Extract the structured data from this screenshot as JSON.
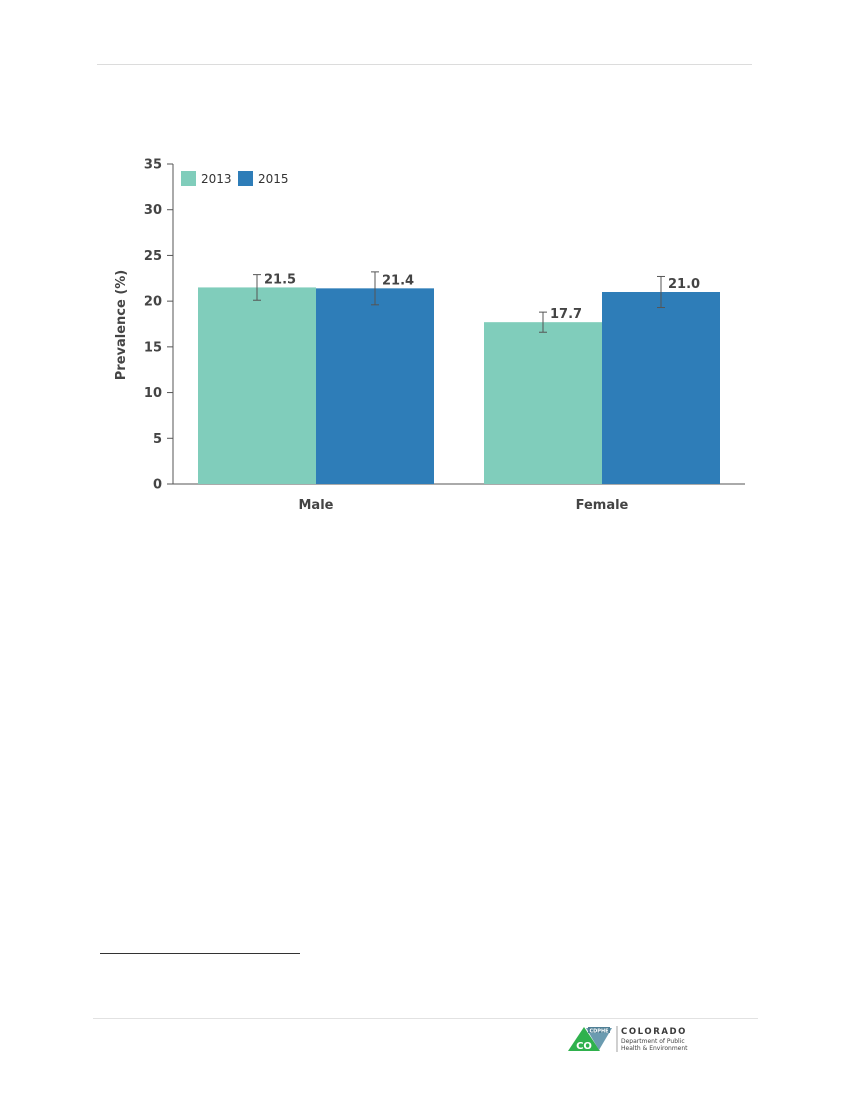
{
  "chart_data": {
    "type": "bar",
    "categories": [
      "Male",
      "Female"
    ],
    "series": [
      {
        "name": "2013",
        "color": "#80cdbb",
        "values": [
          21.5,
          17.7
        ],
        "error_low": [
          20.1,
          16.6
        ],
        "error_high": [
          22.9,
          18.8
        ]
      },
      {
        "name": "2015",
        "color": "#2e7db8",
        "values": [
          21.4,
          21.0
        ],
        "error_low": [
          19.6,
          19.3
        ],
        "error_high": [
          23.2,
          22.7
        ]
      }
    ],
    "data_labels": [
      "21.5",
      "21.4",
      "17.7",
      "21.0"
    ],
    "ylabel": "Prevalence (%)",
    "xlabel": "",
    "ylim": [
      0,
      35
    ],
    "yticks": [
      0,
      5,
      10,
      15,
      20,
      25,
      30,
      35
    ],
    "grid": false,
    "legend_position": "top-left"
  },
  "footer": {
    "logo_badge": "CDPHE",
    "logo_mark": "CO",
    "org_name": "COLORADO",
    "org_line1": "Department of Public",
    "org_line2": "Health & Environment"
  }
}
